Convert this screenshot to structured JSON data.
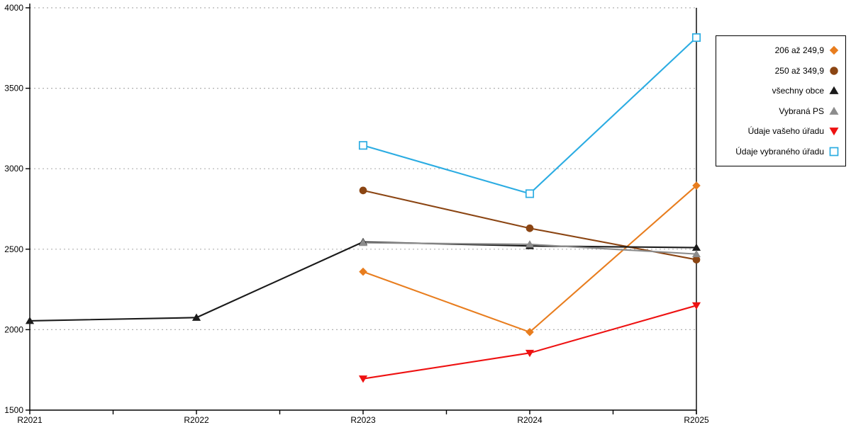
{
  "chart_data": {
    "type": "line",
    "title": "",
    "xlabel": "",
    "ylabel": "",
    "categories": [
      "R2021",
      "R2022",
      "R2023",
      "R2024",
      "R2025"
    ],
    "series": [
      {
        "name": "206 až 249,9",
        "marker": "diamond",
        "color": "#E87D1E",
        "values": [
          null,
          null,
          2360,
          1985,
          2895
        ]
      },
      {
        "name": "250 až 349,9",
        "marker": "circle",
        "color": "#8B4513",
        "values": [
          null,
          null,
          2865,
          2630,
          2435
        ]
      },
      {
        "name": "všechny obce",
        "marker": "triangle-up",
        "color": "#1A1A1A",
        "values": [
          2055,
          2075,
          2545,
          2520,
          2510
        ]
      },
      {
        "name": "Vybraná PS",
        "marker": "triangle-up",
        "color": "#8C8C8C",
        "values": [
          null,
          null,
          2540,
          2530,
          2470
        ]
      },
      {
        "name": "Údaje vašeho úřadu",
        "marker": "triangle-down",
        "color": "#EE1111",
        "values": [
          null,
          null,
          1695,
          1855,
          2150
        ]
      },
      {
        "name": "Údaje vybraného úřadu",
        "marker": "square-open",
        "color": "#2BACE2",
        "values": [
          null,
          null,
          3145,
          2845,
          3815
        ]
      }
    ],
    "y_axis": {
      "min": 1500,
      "max": 4000,
      "step": 500,
      "tick_labels": [
        "1500",
        "2000",
        "2500",
        "3000",
        "3500",
        "4000"
      ]
    },
    "x_tick_labels": [
      "R2021",
      "R2022",
      "R2023",
      "R2024",
      "R2025"
    ],
    "grid": "dashed-horizontal",
    "legend_position": "right",
    "colors": {
      "grid": "#B0B0B0",
      "axis": "#000000",
      "background": "#FFFFFF",
      "text": "#000000"
    }
  }
}
